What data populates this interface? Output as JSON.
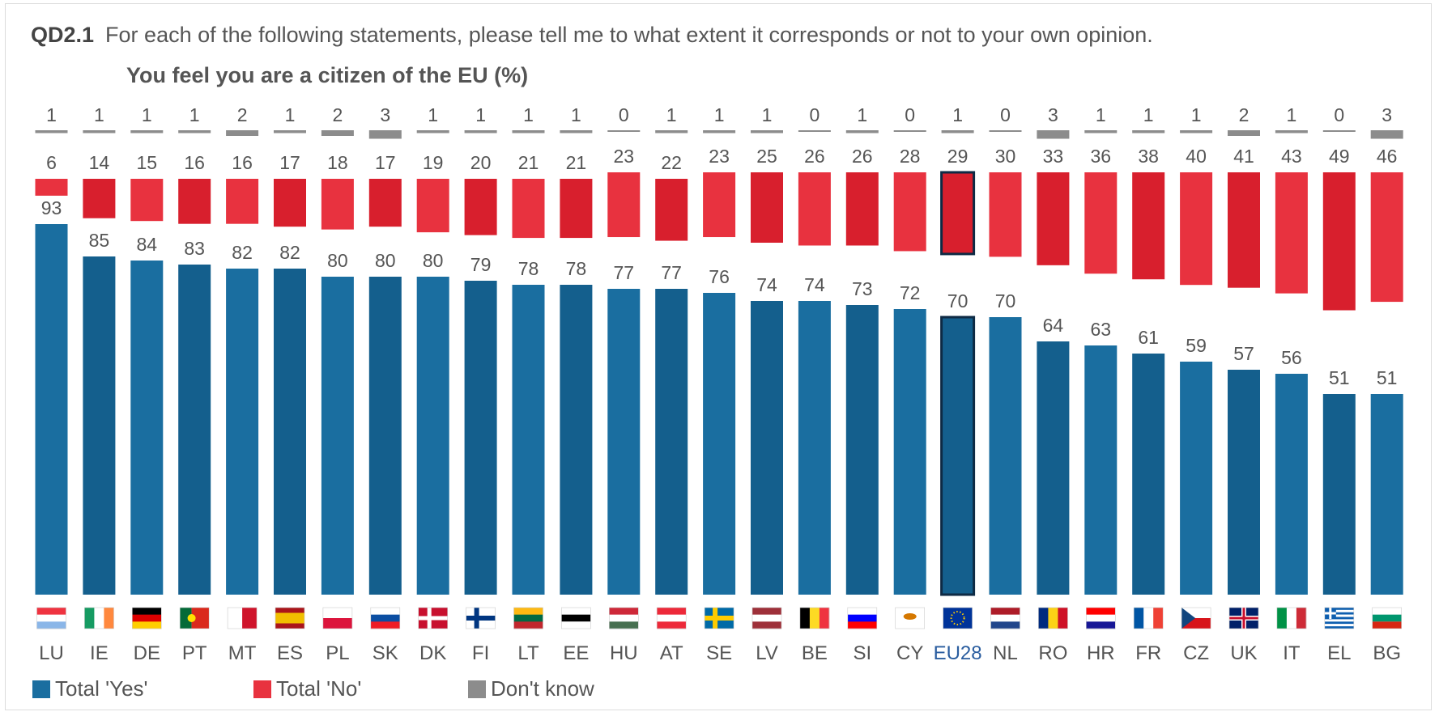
{
  "header": {
    "code": "QD2.1",
    "question": "For each of the following statements, please tell me to what extent it corresponds or not to your own opinion.",
    "subtitle": "You feel you are a citizen of the EU  (%)"
  },
  "colors": {
    "yes": "#1a6ea0",
    "yes_alt": "#145f8d",
    "no": "#e8323f",
    "no_alt": "#d81f2d",
    "dk": "#8c8c8c"
  },
  "chart_data": {
    "type": "bar",
    "categories": [
      "LU",
      "IE",
      "DE",
      "PT",
      "MT",
      "ES",
      "PL",
      "SK",
      "DK",
      "FI",
      "LT",
      "EE",
      "HU",
      "AT",
      "SE",
      "LV",
      "BE",
      "SI",
      "CY",
      "EU28",
      "NL",
      "RO",
      "HR",
      "FR",
      "CZ",
      "UK",
      "IT",
      "EL",
      "BG"
    ],
    "series": [
      {
        "name": "Total 'Yes'",
        "values": [
          93,
          85,
          84,
          83,
          82,
          82,
          80,
          80,
          80,
          79,
          78,
          78,
          77,
          77,
          76,
          74,
          74,
          73,
          72,
          70,
          70,
          64,
          63,
          61,
          59,
          57,
          56,
          51,
          51
        ]
      },
      {
        "name": "Total 'No'",
        "values": [
          6,
          14,
          15,
          16,
          16,
          17,
          18,
          17,
          19,
          20,
          21,
          21,
          23,
          22,
          23,
          25,
          26,
          26,
          28,
          29,
          30,
          33,
          36,
          38,
          40,
          41,
          43,
          49,
          46
        ]
      },
      {
        "name": "Don't know",
        "values": [
          1,
          1,
          1,
          1,
          2,
          1,
          2,
          3,
          1,
          1,
          1,
          1,
          0,
          1,
          1,
          1,
          0,
          1,
          0,
          1,
          0,
          3,
          1,
          1,
          1,
          2,
          1,
          0,
          3
        ]
      }
    ],
    "highlight": "EU28",
    "legend_position": "bottom-left"
  },
  "legend": {
    "items": [
      {
        "label": "Total 'Yes'",
        "color": "#1a6ea0"
      },
      {
        "label": "Total 'No'",
        "color": "#e8323f"
      },
      {
        "label": "Don't know",
        "color": "#8c8c8c"
      }
    ]
  }
}
